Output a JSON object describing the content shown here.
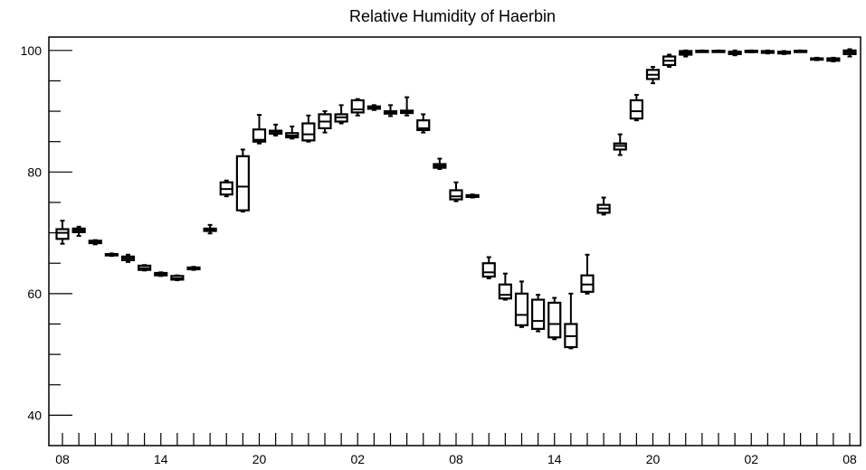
{
  "chart_data": {
    "type": "boxplot",
    "title": "Relative Humidity of Haerbin",
    "xlabel": "",
    "ylabel": "",
    "ylim": [
      35,
      102.2
    ],
    "grid": false,
    "y_ticks": [
      40,
      60,
      80,
      100
    ],
    "x_tick_labels": [
      {
        "index": 0,
        "label": "08"
      },
      {
        "index": 6,
        "label": "14"
      },
      {
        "index": 12,
        "label": "20"
      },
      {
        "index": 18,
        "label": "02"
      },
      {
        "index": 24,
        "label": "08"
      },
      {
        "index": 30,
        "label": "14"
      },
      {
        "index": 36,
        "label": "20"
      },
      {
        "index": 42,
        "label": "02"
      },
      {
        "index": 48,
        "label": "08"
      }
    ],
    "boxes": [
      {
        "x": 0,
        "min": 68.2,
        "q1": 69.0,
        "median": 70.0,
        "q3": 70.6,
        "max": 72.0
      },
      {
        "x": 1,
        "min": 69.5,
        "q1": 70.1,
        "median": 70.4,
        "q3": 70.7,
        "max": 71.0
      },
      {
        "x": 2,
        "min": 68.1,
        "q1": 68.3,
        "median": 68.5,
        "q3": 68.7,
        "max": 68.8
      },
      {
        "x": 3,
        "min": 66.2,
        "q1": 66.3,
        "median": 66.4,
        "q3": 66.5,
        "max": 66.6
      },
      {
        "x": 4,
        "min": 65.2,
        "q1": 65.5,
        "median": 65.8,
        "q3": 66.1,
        "max": 66.4
      },
      {
        "x": 5,
        "min": 63.8,
        "q1": 63.9,
        "median": 64.2,
        "q3": 64.6,
        "max": 64.7
      },
      {
        "x": 6,
        "min": 62.9,
        "q1": 63.0,
        "median": 63.2,
        "q3": 63.4,
        "max": 63.5
      },
      {
        "x": 7,
        "min": 62.2,
        "q1": 62.3,
        "median": 62.5,
        "q3": 62.9,
        "max": 63.0
      },
      {
        "x": 8,
        "min": 63.9,
        "q1": 64.0,
        "median": 64.2,
        "q3": 64.3,
        "max": 64.4
      },
      {
        "x": 9,
        "min": 69.9,
        "q1": 70.3,
        "median": 70.5,
        "q3": 70.7,
        "max": 71.3
      },
      {
        "x": 10,
        "min": 76.0,
        "q1": 76.3,
        "median": 77.2,
        "q3": 78.3,
        "max": 78.6
      },
      {
        "x": 11,
        "min": 73.5,
        "q1": 73.7,
        "median": 77.6,
        "q3": 82.6,
        "max": 83.7
      },
      {
        "x": 12,
        "min": 84.7,
        "q1": 85.0,
        "median": 85.3,
        "q3": 87.0,
        "max": 89.4
      },
      {
        "x": 13,
        "min": 86.0,
        "q1": 86.3,
        "median": 86.6,
        "q3": 86.8,
        "max": 87.8
      },
      {
        "x": 14,
        "min": 85.5,
        "q1": 85.7,
        "median": 86.0,
        "q3": 86.4,
        "max": 87.5
      },
      {
        "x": 15,
        "min": 85.0,
        "q1": 85.2,
        "median": 86.2,
        "q3": 88.0,
        "max": 89.3
      },
      {
        "x": 16,
        "min": 86.5,
        "q1": 87.2,
        "median": 88.3,
        "q3": 89.5,
        "max": 90.0
      },
      {
        "x": 17,
        "min": 88.0,
        "q1": 88.3,
        "median": 89.0,
        "q3": 89.5,
        "max": 91.0
      },
      {
        "x": 18,
        "min": 89.3,
        "q1": 89.8,
        "median": 90.3,
        "q3": 91.8,
        "max": 92.0
      },
      {
        "x": 19,
        "min": 90.2,
        "q1": 90.4,
        "median": 90.6,
        "q3": 90.8,
        "max": 91.0
      },
      {
        "x": 20,
        "min": 89.2,
        "q1": 89.6,
        "median": 89.8,
        "q3": 90.0,
        "max": 91.0
      },
      {
        "x": 21,
        "min": 89.3,
        "q1": 89.7,
        "median": 89.9,
        "q3": 90.1,
        "max": 92.3
      },
      {
        "x": 22,
        "min": 86.5,
        "q1": 86.9,
        "median": 87.2,
        "q3": 88.5,
        "max": 89.5
      },
      {
        "x": 23,
        "min": 80.5,
        "q1": 80.7,
        "median": 81.0,
        "q3": 81.3,
        "max": 82.2
      },
      {
        "x": 24,
        "min": 75.2,
        "q1": 75.5,
        "median": 76.0,
        "q3": 77.0,
        "max": 78.3
      },
      {
        "x": 25,
        "min": 75.8,
        "q1": 75.9,
        "median": 76.0,
        "q3": 76.2,
        "max": 76.3
      },
      {
        "x": 26,
        "min": 62.5,
        "q1": 62.8,
        "median": 63.5,
        "q3": 65.0,
        "max": 66.0
      },
      {
        "x": 27,
        "min": 59.0,
        "q1": 59.2,
        "median": 59.8,
        "q3": 61.5,
        "max": 63.3
      },
      {
        "x": 28,
        "min": 54.5,
        "q1": 54.8,
        "median": 56.5,
        "q3": 60.0,
        "max": 62.0
      },
      {
        "x": 29,
        "min": 53.8,
        "q1": 54.2,
        "median": 55.5,
        "q3": 59.0,
        "max": 59.8
      },
      {
        "x": 30,
        "min": 52.5,
        "q1": 52.8,
        "median": 55.0,
        "q3": 58.5,
        "max": 59.3
      },
      {
        "x": 31,
        "min": 51.0,
        "q1": 51.2,
        "median": 53.0,
        "q3": 55.0,
        "max": 60.0
      },
      {
        "x": 32,
        "min": 60.0,
        "q1": 60.3,
        "median": 61.5,
        "q3": 63.0,
        "max": 66.4
      },
      {
        "x": 33,
        "min": 73.0,
        "q1": 73.3,
        "median": 74.0,
        "q3": 74.6,
        "max": 75.8
      },
      {
        "x": 34,
        "min": 82.8,
        "q1": 83.7,
        "median": 84.3,
        "q3": 84.7,
        "max": 86.2
      },
      {
        "x": 35,
        "min": 88.5,
        "q1": 88.8,
        "median": 90.0,
        "q3": 91.8,
        "max": 92.7
      },
      {
        "x": 36,
        "min": 94.6,
        "q1": 95.3,
        "median": 96.0,
        "q3": 96.8,
        "max": 97.3
      },
      {
        "x": 37,
        "min": 97.3,
        "q1": 97.6,
        "median": 98.3,
        "q3": 99.0,
        "max": 99.3
      },
      {
        "x": 38,
        "min": 99.0,
        "q1": 99.3,
        "median": 99.6,
        "q3": 99.9,
        "max": 100.0
      },
      {
        "x": 39,
        "min": 99.8,
        "q1": 99.85,
        "median": 99.9,
        "q3": 99.95,
        "max": 100.0
      },
      {
        "x": 40,
        "min": 99.8,
        "q1": 99.85,
        "median": 99.9,
        "q3": 99.95,
        "max": 100.0
      },
      {
        "x": 41,
        "min": 99.2,
        "q1": 99.4,
        "median": 99.6,
        "q3": 99.8,
        "max": 100.0
      },
      {
        "x": 42,
        "min": 99.7,
        "q1": 99.8,
        "median": 99.9,
        "q3": 99.95,
        "max": 100.0
      },
      {
        "x": 43,
        "min": 99.5,
        "q1": 99.6,
        "median": 99.8,
        "q3": 99.9,
        "max": 100.0
      },
      {
        "x": 44,
        "min": 99.4,
        "q1": 99.5,
        "median": 99.6,
        "q3": 99.8,
        "max": 99.9
      },
      {
        "x": 45,
        "min": 99.8,
        "q1": 99.85,
        "median": 99.9,
        "q3": 99.95,
        "max": 100.0
      },
      {
        "x": 46,
        "min": 98.4,
        "q1": 98.5,
        "median": 98.6,
        "q3": 98.7,
        "max": 98.8
      },
      {
        "x": 47,
        "min": 98.2,
        "q1": 98.3,
        "median": 98.5,
        "q3": 98.7,
        "max": 98.8
      },
      {
        "x": 48,
        "min": 99.0,
        "q1": 99.4,
        "median": 99.7,
        "q3": 100.0,
        "max": 100.2
      }
    ]
  }
}
